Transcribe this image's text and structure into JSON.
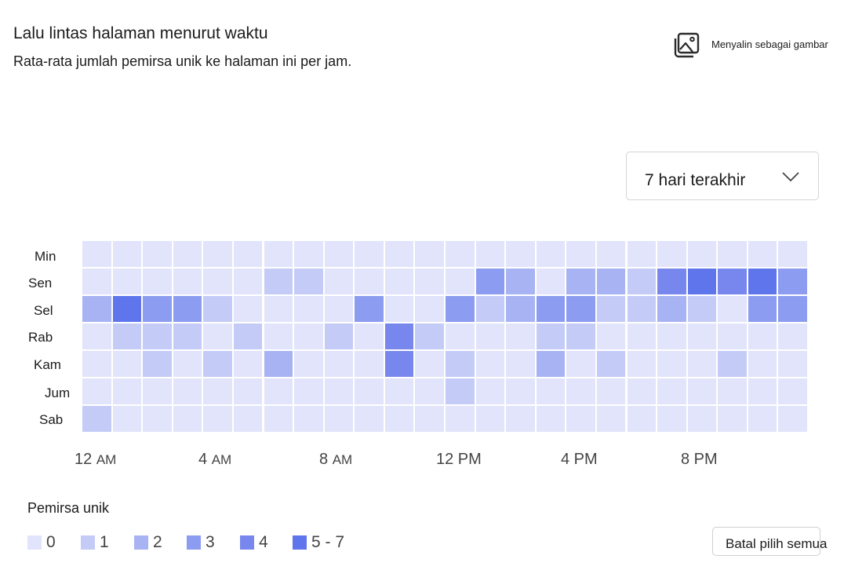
{
  "header": {
    "title": "Lalu lintas halaman menurut waktu",
    "subtitle": "Rata-rata jumlah pemirsa unik ke halaman ini per jam.",
    "copy_label": "Menyalin sebagai gambar",
    "copy_icon": "image-icon"
  },
  "filter": {
    "selected": "7 hari terakhir",
    "icon": "chevron-down-icon"
  },
  "legend": {
    "title": "Pemirsa unik",
    "items": [
      {
        "label": "0",
        "color": "#e1e4fa"
      },
      {
        "label": "1",
        "color": "#c4cbf7"
      },
      {
        "label": "2",
        "color": "#a7b3f2"
      },
      {
        "label": "3",
        "color": "#8c9cf0"
      },
      {
        "label": "4",
        "color": "#7787ed"
      },
      {
        "label": "5 - 7",
        "color": "#5f75eb"
      }
    ]
  },
  "clear_button": "Batal pilih semua",
  "chart_data": {
    "type": "heatmap",
    "title": "Lalu lintas halaman menurut waktu",
    "subtitle": "Rata-rata jumlah pemirsa unik ke halaman ini per jam.",
    "rows": [
      "Min",
      "Sen",
      "Sel",
      "Rab",
      "Kam",
      "Jum",
      "Sab"
    ],
    "columns_count": 24,
    "x_ticks": [
      {
        "hour": 0,
        "main": "12",
        "suffix": "AM"
      },
      {
        "hour": 4,
        "main": "4",
        "suffix": "AM"
      },
      {
        "hour": 8,
        "main": "8",
        "suffix": "AM"
      },
      {
        "hour": 12,
        "main": "12 PM",
        "suffix": ""
      },
      {
        "hour": 16,
        "main": "4 PM",
        "suffix": ""
      },
      {
        "hour": 20,
        "main": "8 PM",
        "suffix": ""
      }
    ],
    "legend_title": "Pemirsa unik",
    "values": [
      [
        0,
        0,
        0,
        0,
        0,
        0,
        0,
        0,
        0,
        0,
        0,
        0,
        0,
        0,
        0,
        0,
        0,
        0,
        0,
        0,
        0,
        0,
        0,
        0
      ],
      [
        0,
        0,
        0,
        0,
        0,
        0,
        1,
        1,
        0,
        0,
        0,
        0,
        0,
        3,
        2,
        0,
        2,
        2,
        1,
        4,
        5,
        4,
        5,
        3
      ],
      [
        2,
        5,
        3,
        3,
        1,
        0,
        0,
        0,
        0,
        3,
        0,
        0,
        3,
        1,
        2,
        3,
        3,
        1,
        1,
        2,
        1,
        0,
        3,
        3
      ],
      [
        0,
        1,
        1,
        1,
        0,
        1,
        0,
        0,
        1,
        0,
        4,
        1,
        0,
        0,
        0,
        1,
        1,
        0,
        0,
        0,
        0,
        0,
        0,
        0
      ],
      [
        0,
        0,
        1,
        0,
        1,
        0,
        2,
        0,
        0,
        0,
        4,
        0,
        1,
        0,
        0,
        2,
        0,
        1,
        0,
        0,
        0,
        1,
        0,
        0
      ],
      [
        0,
        0,
        0,
        0,
        0,
        0,
        0,
        0,
        0,
        0,
        0,
        0,
        1,
        0,
        0,
        0,
        0,
        0,
        0,
        0,
        0,
        0,
        0,
        0
      ],
      [
        1,
        0,
        0,
        0,
        0,
        0,
        0,
        0,
        0,
        0,
        0,
        0,
        0,
        0,
        0,
        0,
        0,
        0,
        0,
        0,
        0,
        0,
        0,
        0
      ]
    ]
  }
}
